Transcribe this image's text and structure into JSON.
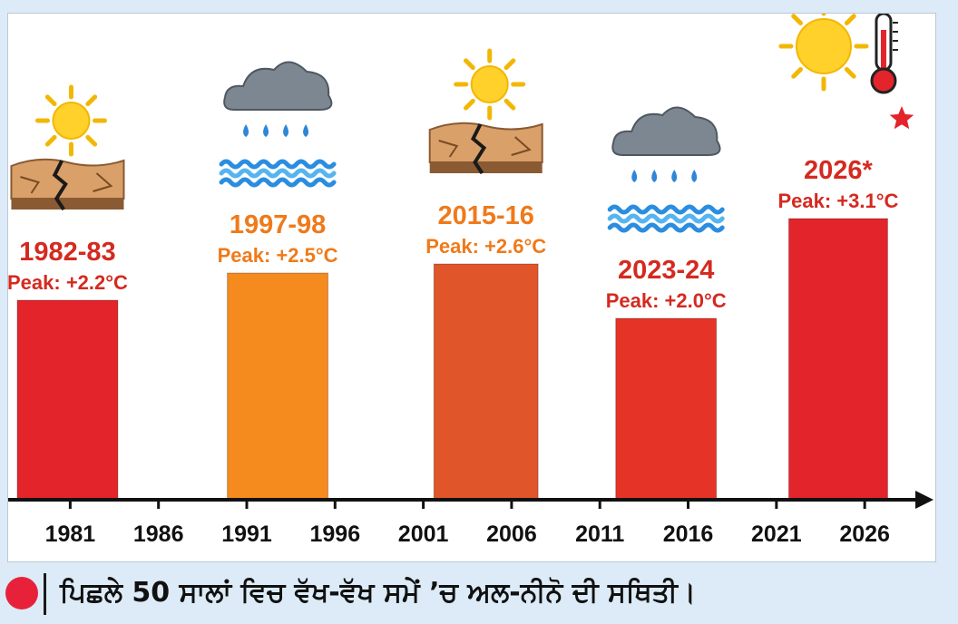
{
  "colors": {
    "red": "#e3242b",
    "orange": "#f58a1f",
    "dark_orange": "#e0552a",
    "bright_red": "#e63328",
    "label_red": "#d42a20",
    "label_orange": "#ef7a1a",
    "caption_dot": "#e8213a",
    "axis": "#111111"
  },
  "caption": {
    "text": "ਪਿਛਲੇ 50 ਸਾਲਾਂ ਵਿਚ ਵੱਖ-ਵੱਖ ਸਮੇਂ ’ਚ ਅਲ-ਨੀਨੋ ਦੀ ਸਥਿਤੀ।"
  },
  "chart_data": {
    "type": "bar",
    "x_ticks": [
      "1981",
      "1986",
      "1991",
      "1996",
      "2001",
      "2006",
      "2011",
      "2016",
      "2021",
      "2026"
    ],
    "xlim": [
      1978,
      2030
    ],
    "ylim": [
      0,
      3.5
    ],
    "unit": "°C",
    "bars": [
      {
        "period": "1982-83",
        "start": 1978.0,
        "end": 1983.7,
        "value": 2.2,
        "peak_label": "Peak: +2.2°C",
        "color": "#e3242b",
        "label_color": "#d42a20",
        "icon": "sun-cracked-earth-icon"
      },
      {
        "period": "1997-98",
        "start": 1989.9,
        "end": 1995.6,
        "value": 2.5,
        "peak_label": "Peak: +2.5°C",
        "color": "#f58a1f",
        "label_color": "#ef7a1a",
        "icon": "rain-cloud-waves-icon"
      },
      {
        "period": "2015-16",
        "start": 2001.6,
        "end": 2007.5,
        "value": 2.6,
        "peak_label": "Peak: +2.6°C",
        "color": "#e0552a",
        "label_color": "#ef7a1a",
        "icon": "sun-cracked-earth-icon"
      },
      {
        "period": "2023-24",
        "start": 2011.9,
        "end": 2017.6,
        "value": 2.0,
        "peak_label": "Peak: +2.0°C",
        "color": "#e63328",
        "label_color": "#d42a20",
        "icon": "rain-cloud-waves-icon"
      },
      {
        "period": "2026*",
        "start": 2021.7,
        "end": 2027.3,
        "value": 3.1,
        "peak_label": "Peak: +3.1°C",
        "color": "#e3242b",
        "label_color": "#d42a20",
        "icon": "sun-thermometer-star-icon"
      }
    ]
  }
}
